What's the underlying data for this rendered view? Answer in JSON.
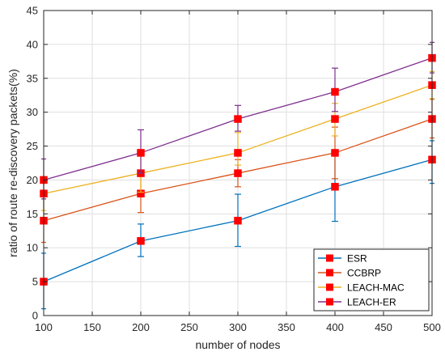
{
  "chart_data": {
    "type": "line",
    "xlabel": "number of nodes",
    "ylabel": "ratio of route re-discovery packets(%)",
    "xlim": [
      100,
      500
    ],
    "ylim": [
      0,
      45
    ],
    "xticks": [
      100,
      150,
      200,
      250,
      300,
      350,
      400,
      450,
      500
    ],
    "yticks": [
      0,
      5,
      10,
      15,
      20,
      25,
      30,
      35,
      40,
      45
    ],
    "grid": true,
    "legend_position": "bottom-right",
    "marker_color": "#ff0000",
    "x": [
      100,
      200,
      300,
      400,
      500
    ],
    "series": [
      {
        "name": "ESR",
        "color": "#0072bd",
        "values": [
          5,
          11,
          14,
          19,
          23
        ],
        "error_low": [
          1,
          8.7,
          10.2,
          13.9,
          19.5
        ],
        "error_high": [
          9.2,
          13.5,
          17.9,
          24,
          25.8
        ]
      },
      {
        "name": "CCBRP",
        "color": "#d95319",
        "values": [
          14,
          18,
          21,
          24,
          29
        ],
        "error_low": [
          10.8,
          15.2,
          19,
          20.2,
          26.2
        ],
        "error_high": [
          17.2,
          21,
          23,
          27.8,
          31.9
        ]
      },
      {
        "name": "LEACH-MAC",
        "color": "#edb120",
        "values": [
          18,
          21,
          24,
          29,
          34
        ],
        "error_low": [
          15.5,
          18.2,
          22.2,
          26.5,
          32
        ],
        "error_high": [
          20.5,
          23.8,
          27,
          31.3,
          36
        ]
      },
      {
        "name": "LEACH-ER",
        "color": "#7e2f8e",
        "values": [
          20,
          24,
          29,
          33,
          38
        ],
        "error_low": [
          17.2,
          21,
          27.2,
          30.1,
          35.8
        ],
        "error_high": [
          23.1,
          27.4,
          31,
          36.5,
          40.3
        ]
      }
    ]
  }
}
